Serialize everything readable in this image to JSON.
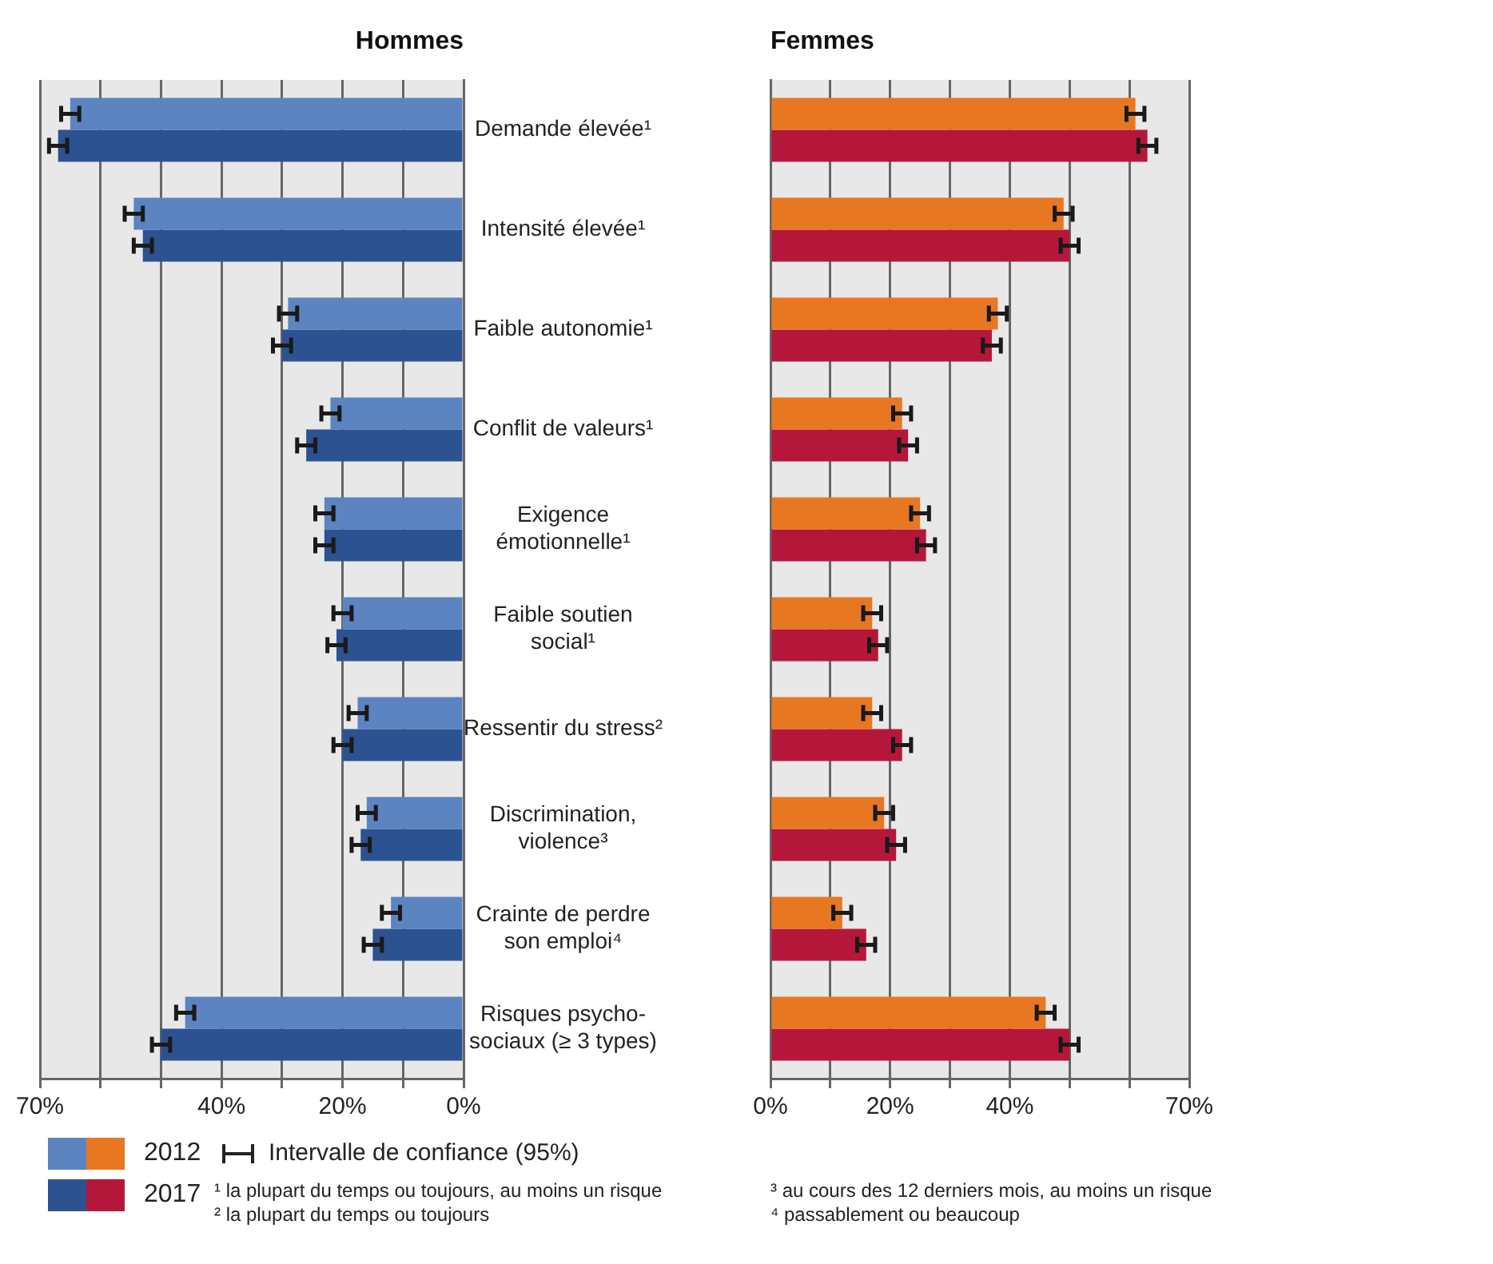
{
  "chart_data": [
    {
      "type": "bar",
      "orientation": "horizontal",
      "title": "Hommes",
      "categories": [
        "Demande élevée¹",
        "Intensité élevée¹",
        "Faible autonomie¹",
        "Conflit de valeurs¹",
        "Exigence émotionnelle¹",
        "Faible soutien social¹",
        "Ressentir du stress²",
        "Discrimination, violence³",
        "Crainte de perdre son emploi⁴",
        "Risques psycho-sociaux (≥ 3 types)"
      ],
      "series": [
        {
          "name": "2012",
          "color": "#5b84c0",
          "values": [
            65,
            54.5,
            29,
            22,
            23,
            20,
            17.5,
            16,
            12,
            46
          ],
          "errors": [
            1.5,
            1.5,
            1.5,
            1.5,
            1.5,
            1.5,
            1.5,
            1.5,
            1.5,
            1.5
          ]
        },
        {
          "name": "2017",
          "color": "#2d5291",
          "values": [
            67,
            53,
            30,
            26,
            23,
            21,
            20,
            17,
            15,
            50
          ],
          "errors": [
            1.5,
            1.5,
            1.5,
            1.5,
            1.5,
            1.5,
            1.5,
            1.5,
            1.5,
            1.5
          ]
        }
      ],
      "xlim": [
        70,
        0
      ],
      "xticks": [
        {
          "value": 70,
          "label": "70%"
        },
        {
          "value": 60,
          "label": null
        },
        {
          "value": 50,
          "label": null
        },
        {
          "value": 40,
          "label": "40%"
        },
        {
          "value": 30,
          "label": null
        },
        {
          "value": 20,
          "label": "20%"
        },
        {
          "value": 10,
          "label": null
        },
        {
          "value": 0,
          "label": "0%"
        }
      ],
      "grid": "x",
      "legend": "bottom",
      "annotations": [
        "Intervalle de confiance (95%)",
        "¹ la plupart du temps ou toujours, au moins un risque",
        "² la plupart du temps ou toujours",
        "³ au cours des 12 derniers mois, au moins un risque",
        "⁴ passablement ou beaucoup"
      ]
    },
    {
      "type": "bar",
      "orientation": "horizontal",
      "title": "Femmes",
      "categories": [
        null,
        null,
        null,
        null,
        null,
        null,
        null,
        null,
        null,
        null
      ],
      "series": [
        {
          "name": "2012",
          "color": "#e87722",
          "values": [
            61,
            49,
            38,
            22,
            25,
            17,
            17,
            19,
            12,
            46
          ],
          "errors": [
            1.5,
            1.5,
            1.5,
            1.5,
            1.5,
            1.5,
            1.5,
            1.5,
            1.5,
            1.5
          ]
        },
        {
          "name": "2017",
          "color": "#b5173a",
          "values": [
            63,
            50,
            37,
            23,
            26,
            18,
            22,
            21,
            16,
            50
          ],
          "errors": [
            1.5,
            1.5,
            1.5,
            1.5,
            1.5,
            1.5,
            1.5,
            1.5,
            1.5,
            1.5
          ]
        }
      ],
      "xlim": [
        0,
        70
      ],
      "xticks": [
        {
          "value": 0,
          "label": "0%"
        },
        {
          "value": 10,
          "label": null
        },
        {
          "value": 20,
          "label": "20%"
        },
        {
          "value": 30,
          "label": null
        },
        {
          "value": 40,
          "label": "40%"
        },
        {
          "value": 50,
          "label": null
        },
        {
          "value": 60,
          "label": null
        },
        {
          "value": 70,
          "label": "70%"
        }
      ],
      "grid": "x",
      "legend": "bottom"
    }
  ]
}
